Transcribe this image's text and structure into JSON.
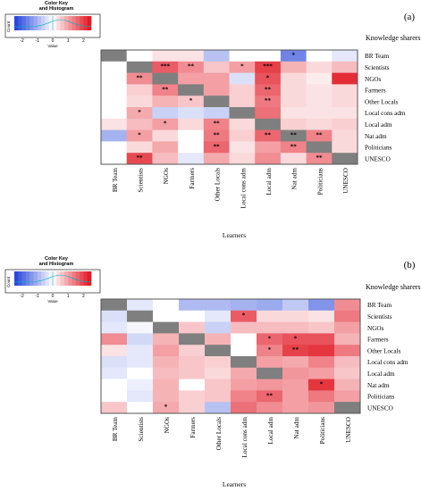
{
  "chart_data": [
    {
      "type": "heatmap",
      "panel_label": "(a)",
      "title_right": "Knowledge sharers",
      "xlabel": "Learners",
      "rows": [
        "BR Team",
        "Scientists",
        "NGOs",
        "Farmers",
        "Other Locals",
        "Local cons adm",
        "Local adm",
        "Nat adm",
        "Politicians",
        "UNESCO"
      ],
      "columns": [
        "BR Team",
        "Scientists",
        "NGOs",
        "Farmers",
        "Other Locals",
        "Local cons adm",
        "Local adm",
        "Nat adm",
        "Politicians",
        "UNESCO"
      ],
      "values": [
        [
          null,
          0.0,
          0.3,
          0.3,
          -0.8,
          0.0,
          0.0,
          -1.6,
          0.0,
          -0.3
        ],
        [
          0.0,
          null,
          1.7,
          1.2,
          0.6,
          1.0,
          2.0,
          0.8,
          0.4,
          0.7
        ],
        [
          0.0,
          1.2,
          null,
          1.0,
          1.0,
          -0.4,
          1.8,
          0.4,
          0.2,
          2.2
        ],
        [
          0.0,
          0.5,
          1.3,
          null,
          1.0,
          0.5,
          1.6,
          0.4,
          0.3,
          0.4
        ],
        [
          0.0,
          0.4,
          0.8,
          0.6,
          null,
          0.5,
          1.4,
          0.4,
          0.3,
          0.4
        ],
        [
          0.0,
          0.9,
          -0.6,
          -0.4,
          -0.6,
          null,
          1.5,
          0.3,
          0.3,
          0.3
        ],
        [
          0.3,
          0.7,
          1.0,
          0.4,
          1.3,
          0.4,
          null,
          0.5,
          0.4,
          0.5
        ],
        [
          -1.0,
          1.0,
          0.4,
          0.0,
          1.4,
          0.5,
          1.6,
          null,
          1.3,
          0.4
        ],
        [
          0.0,
          0.4,
          0.9,
          0.0,
          1.6,
          0.3,
          1.0,
          1.3,
          null,
          0.4
        ],
        [
          0.0,
          1.9,
          0.7,
          -0.3,
          0.9,
          0.4,
          1.2,
          0.4,
          1.2,
          null
        ]
      ],
      "stars": [
        [
          "",
          "",
          "",
          "",
          "",
          "",
          "",
          "*",
          "",
          ""
        ],
        [
          "",
          "",
          "***",
          "**",
          "",
          "*",
          "***",
          "",
          "",
          ""
        ],
        [
          "",
          "**",
          "",
          "",
          "",
          "",
          "*",
          "",
          "",
          ""
        ],
        [
          "",
          "",
          "**",
          "",
          "",
          "",
          "**",
          "",
          "",
          ""
        ],
        [
          "",
          "",
          "",
          "*",
          "",
          "",
          "**",
          "",
          "",
          ""
        ],
        [
          "",
          "*",
          "",
          "",
          "",
          "",
          "",
          "",
          "",
          ""
        ],
        [
          "",
          "",
          "*",
          "",
          "**",
          "",
          "",
          "",
          "",
          ""
        ],
        [
          "",
          "*",
          "",
          "",
          "**",
          "",
          "**",
          "**",
          "**",
          ""
        ],
        [
          "",
          "",
          "",
          "",
          "**",
          "",
          "",
          "**",
          "",
          ""
        ],
        [
          "",
          "**",
          "",
          "",
          "",
          "",
          "",
          "",
          "**",
          ""
        ]
      ],
      "color_key": {
        "title": "Color Key\nand Histogram",
        "ticks": [
          "-2",
          "-1",
          "0",
          "1",
          "2"
        ],
        "xlabel": "Value",
        "ylabel": "Count",
        "range": [
          -2.5,
          2.5
        ],
        "low_color": "#1f3fd9",
        "mid_color": "#ffffff",
        "high_color": "#e0101c",
        "missing_color": "#7f7f7f"
      }
    },
    {
      "type": "heatmap",
      "panel_label": "(b)",
      "title_right": "Knowledge sharers",
      "xlabel": "Learners",
      "rows": [
        "BR Team",
        "Scientists",
        "NGOs",
        "Farmers",
        "Other Locals",
        "Local cons adm",
        "Local adm",
        "Nat adm",
        "Politicians",
        "UNESCO"
      ],
      "columns": [
        "BR Team",
        "Scientists",
        "NGOs",
        "Farmers",
        "Other Locals",
        "Local cons adm",
        "Local adm",
        "Nat adm",
        "Politicians",
        "UNESCO"
      ],
      "values": [
        [
          null,
          -0.3,
          0.0,
          -0.9,
          -0.9,
          -1.0,
          -1.1,
          -0.7,
          -1.4,
          1.2
        ],
        [
          -0.4,
          null,
          0.0,
          0.0,
          -0.3,
          1.7,
          0.4,
          0.4,
          0.3,
          1.4
        ],
        [
          -0.3,
          -0.1,
          null,
          0.6,
          -0.6,
          0.7,
          0.7,
          0.7,
          0.6,
          1.0
        ],
        [
          1.2,
          -0.5,
          0.8,
          null,
          0.8,
          0.0,
          1.6,
          1.8,
          1.8,
          0.8
        ],
        [
          0.3,
          -0.3,
          1.0,
          0.5,
          null,
          0.0,
          1.3,
          2.0,
          2.1,
          1.4
        ],
        [
          -0.4,
          -0.3,
          0.8,
          0.6,
          0.5,
          null,
          1.0,
          0.9,
          1.3,
          0.7
        ],
        [
          -0.3,
          0.0,
          0.7,
          0.6,
          0.4,
          0.9,
          null,
          1.1,
          1.0,
          0.6
        ],
        [
          0.0,
          -0.2,
          0.8,
          0.0,
          0.6,
          1.0,
          1.1,
          1.0,
          2.1,
          0.8
        ],
        [
          0.0,
          -0.3,
          0.8,
          0.5,
          0.6,
          1.3,
          1.6,
          1.0,
          1.4,
          1.0
        ],
        [
          0.6,
          0.0,
          0.9,
          0.5,
          -0.8,
          1.5,
          1.2,
          1.0,
          1.1,
          null
        ]
      ],
      "stars": [
        [
          "",
          "",
          "",
          "",
          "",
          "",
          "",
          "",
          "",
          ""
        ],
        [
          "",
          "",
          "",
          "",
          "",
          "*",
          "",
          "",
          "",
          ""
        ],
        [
          "",
          "",
          "",
          "",
          "",
          "",
          "",
          "",
          "",
          ""
        ],
        [
          "",
          "",
          "",
          "",
          "",
          "",
          "*",
          "*",
          "",
          ""
        ],
        [
          "",
          "",
          "",
          "",
          "",
          "",
          "*",
          "**",
          "",
          ""
        ],
        [
          "",
          "",
          "",
          "",
          "",
          "",
          "",
          "",
          "",
          ""
        ],
        [
          "",
          "",
          "",
          "",
          "",
          "",
          "",
          "",
          "",
          ""
        ],
        [
          "",
          "",
          "",
          "",
          "",
          "",
          "",
          "",
          "*",
          ""
        ],
        [
          "",
          "",
          "",
          "",
          "",
          "",
          "**",
          "",
          "",
          ""
        ],
        [
          "",
          "",
          "*",
          "",
          "",
          "",
          "",
          "",
          "",
          ""
        ]
      ],
      "color_key": {
        "title": "Color Key\nand Histogram",
        "ticks": [
          "-2",
          "-1",
          "0",
          "1",
          "2"
        ],
        "xlabel": "Value",
        "ylabel": "Count",
        "range": [
          -2.5,
          2.5
        ],
        "low_color": "#1f3fd9",
        "mid_color": "#ffffff",
        "high_color": "#e0101c",
        "missing_color": "#7f7f7f"
      }
    }
  ]
}
